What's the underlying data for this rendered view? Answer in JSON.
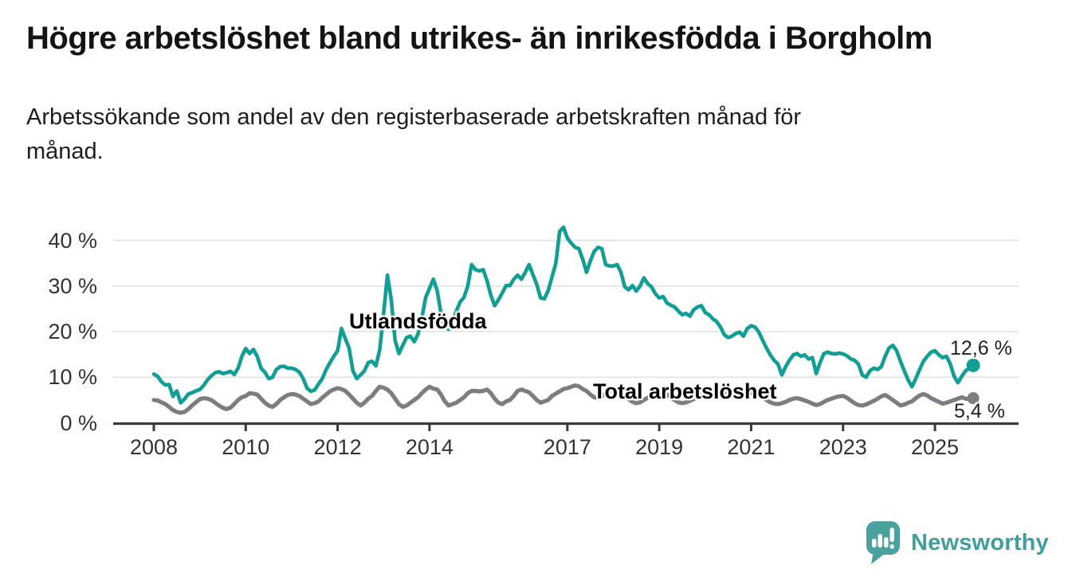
{
  "header": {
    "title": "Högre arbetslöshet bland utrikes- än inrikesfödda i Borgholm",
    "subtitle": "Arbetssökande som andel av den registerbaserade arbetskraften månad för månad.",
    "subtitle_line1": "Arbetssökande som andel av den registerbaserade arbetskraften månad för",
    "subtitle_line2": "månad."
  },
  "footer": {
    "brand": "Newsworthy",
    "brand_color": "#3da09c",
    "icon_color": "#4aa29f",
    "icon": "newsworthy-speech-bubble-bar-chart"
  },
  "chart_data": {
    "type": "line",
    "title": "Högre arbetslöshet bland utrikes- än inrikesfödda i Borgholm",
    "subtitle": "Arbetssökande som andel av den registerbaserade arbetskraften månad för månad.",
    "unit": "percent",
    "frequency": "monthly",
    "start": "2008-01",
    "end": "2025-11",
    "grid": "horizontal-only",
    "legend_position": "inline-labels-on-lines",
    "x_axis": {
      "ticks": [
        2008,
        2010,
        2012,
        2014,
        2017,
        2019,
        2021,
        2023,
        2025
      ],
      "range": [
        2008,
        2025.92
      ]
    },
    "y_axis": {
      "ticks": [
        0,
        10,
        20,
        30,
        40
      ],
      "tick_suffix": " %",
      "range": [
        0,
        44
      ]
    },
    "axis_color": "#3b3b3b",
    "gridline_color": "#e2e2e2",
    "series": [
      {
        "name": "Utlandsfödda",
        "color": "#0f9f95",
        "line_width": 4.6,
        "dot_radius": 8.5,
        "end_label": "12,6 %",
        "end_value": 12.6,
        "values": [
          10.7,
          10.2,
          9.0,
          8.3,
          8.4,
          5.8,
          7.0,
          4.4,
          5.2,
          6.3,
          6.6,
          7.0,
          7.3,
          8.2,
          9.4,
          10.3,
          11.0,
          11.2,
          10.8,
          11.0,
          11.3,
          10.6,
          12.0,
          14.6,
          16.3,
          15.2,
          16.1,
          14.6,
          12.0,
          11.1,
          9.7,
          10.0,
          11.7,
          12.3,
          12.4,
          12.0,
          12.0,
          11.7,
          11.1,
          9.7,
          7.6,
          6.9,
          7.2,
          8.5,
          9.7,
          11.7,
          13.2,
          14.6,
          15.8,
          20.7,
          18.5,
          16.4,
          11.4,
          9.7,
          10.5,
          11.4,
          13.2,
          13.5,
          12.5,
          16.0,
          24.0,
          32.4,
          27.0,
          18.1,
          15.2,
          17.0,
          18.7,
          19.0,
          17.8,
          19.5,
          23.0,
          27.5,
          29.5,
          31.5,
          29.0,
          24.0,
          21.0,
          20.5,
          22.0,
          24.5,
          26.5,
          27.5,
          30.0,
          34.7,
          33.6,
          33.3,
          33.6,
          31.2,
          28.0,
          25.7,
          27.0,
          28.5,
          30.1,
          30.1,
          31.5,
          32.4,
          31.5,
          33.0,
          34.7,
          32.5,
          30.4,
          27.4,
          27.2,
          29.0,
          32.0,
          35.0,
          42.0,
          42.9,
          40.5,
          39.4,
          38.5,
          38.2,
          35.9,
          33.0,
          35.5,
          37.6,
          38.5,
          38.2,
          34.7,
          34.4,
          34.4,
          34.7,
          33.0,
          29.8,
          29.2,
          30.1,
          28.9,
          30.0,
          31.8,
          30.5,
          29.8,
          28.3,
          27.4,
          27.7,
          26.3,
          25.8,
          25.4,
          24.5,
          23.7,
          24.0,
          23.4,
          24.8,
          25.4,
          25.7,
          24.2,
          23.7,
          22.8,
          22.2,
          21.0,
          19.3,
          18.7,
          19.0,
          19.6,
          19.9,
          19.0,
          20.7,
          21.3,
          21.0,
          19.9,
          18.1,
          16.4,
          14.9,
          13.7,
          12.9,
          10.5,
          12.3,
          13.7,
          14.9,
          15.2,
          14.6,
          14.9,
          14.0,
          14.3,
          10.8,
          13.2,
          15.2,
          15.5,
          15.2,
          15.1,
          15.3,
          15.1,
          14.7,
          14.0,
          13.7,
          12.9,
          10.5,
          10.0,
          11.4,
          12.0,
          11.7,
          12.3,
          14.6,
          16.4,
          17.0,
          15.8,
          13.5,
          11.4,
          9.4,
          7.9,
          9.7,
          11.7,
          13.5,
          14.6,
          15.5,
          15.8,
          14.9,
          14.3,
          14.6,
          12.9,
          10.2,
          8.8,
          10.2,
          11.4,
          12.0,
          12.6
        ]
      },
      {
        "name": "Total arbetslöshet",
        "color": "#7d7d81",
        "line_width": 5.2,
        "dot_radius": 7.5,
        "end_label": "5,4 %",
        "end_value": 5.4,
        "values": [
          5.0,
          4.9,
          4.5,
          4.1,
          3.5,
          2.8,
          2.4,
          2.2,
          2.4,
          3.0,
          3.8,
          4.5,
          5.2,
          5.4,
          5.3,
          5.0,
          4.4,
          3.8,
          3.3,
          3.0,
          3.3,
          4.1,
          5.0,
          5.6,
          5.9,
          6.5,
          6.4,
          6.2,
          5.3,
          4.4,
          3.8,
          3.5,
          4.1,
          5.0,
          5.6,
          6.1,
          6.3,
          6.2,
          5.9,
          5.3,
          4.7,
          4.1,
          4.3,
          4.7,
          5.5,
          6.2,
          6.9,
          7.3,
          7.6,
          7.4,
          7.0,
          6.2,
          5.3,
          4.4,
          3.8,
          4.4,
          5.3,
          5.9,
          7.0,
          7.9,
          7.7,
          7.3,
          6.5,
          5.3,
          4.1,
          3.5,
          3.8,
          4.4,
          5.0,
          5.6,
          6.5,
          7.3,
          7.9,
          7.5,
          7.3,
          6.2,
          4.7,
          3.8,
          4.1,
          4.4,
          5.0,
          5.6,
          6.5,
          7.0,
          7.0,
          6.9,
          7.0,
          7.3,
          6.5,
          5.3,
          4.4,
          4.1,
          4.7,
          5.0,
          5.9,
          7.0,
          7.3,
          7.0,
          6.7,
          5.9,
          5.0,
          4.4,
          4.7,
          5.0,
          5.9,
          6.4,
          6.9,
          7.4,
          7.6,
          7.9,
          8.2,
          8.0,
          7.4,
          7.0,
          6.2,
          5.6,
          5.4,
          5.8,
          6.4,
          7.0,
          7.3,
          7.2,
          6.8,
          6.0,
          5.2,
          4.6,
          4.3,
          4.5,
          5.0,
          5.5,
          6.0,
          6.5,
          6.8,
          6.6,
          6.2,
          5.6,
          5.0,
          4.5,
          4.3,
          4.5,
          4.8,
          5.2,
          5.7,
          6.2,
          6.5,
          6.6,
          7.0,
          7.6,
          7.4,
          6.8,
          6.2,
          5.8,
          5.6,
          5.8,
          6.1,
          6.4,
          6.6,
          6.4,
          6.0,
          5.5,
          5.0,
          4.5,
          4.2,
          4.1,
          4.3,
          4.6,
          5.0,
          5.3,
          5.4,
          5.2,
          4.9,
          4.6,
          4.2,
          3.9,
          4.1,
          4.6,
          5.0,
          5.3,
          5.6,
          5.8,
          5.9,
          5.5,
          4.9,
          4.3,
          3.9,
          3.8,
          4.0,
          4.4,
          4.8,
          5.3,
          5.8,
          6.1,
          5.6,
          5.0,
          4.4,
          3.8,
          4.0,
          4.4,
          4.7,
          5.4,
          6.0,
          6.3,
          6.0,
          5.4,
          5.0,
          4.6,
          4.2,
          4.4,
          4.7,
          5.0,
          5.3,
          5.6,
          5.3,
          5.2,
          5.4
        ]
      }
    ]
  }
}
